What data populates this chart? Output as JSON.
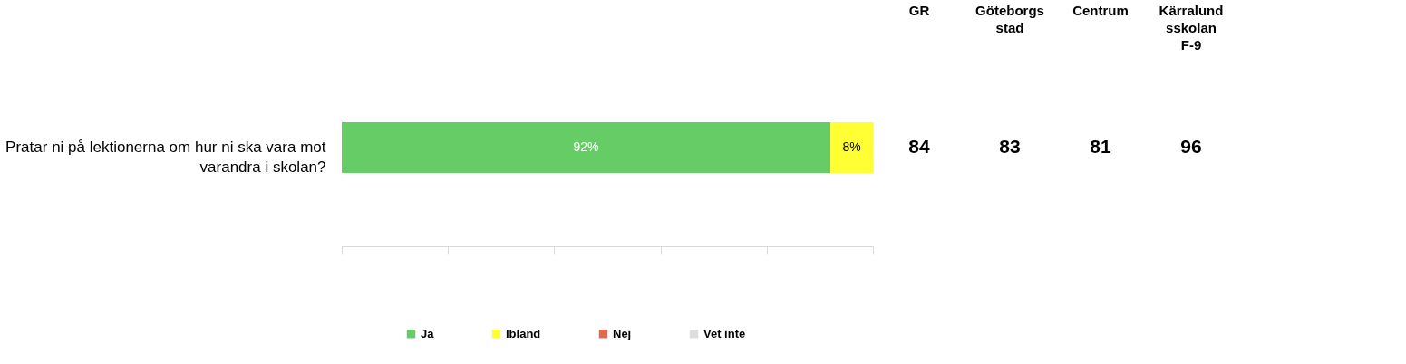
{
  "chart_data": [
    {
      "type": "bar",
      "orientation": "horizontal",
      "stacked": true,
      "categories": [
        "Pratar ni på lektionerna om hur ni ska vara mot varandra i skolan?"
      ],
      "series": [
        {
          "name": "Ja",
          "color": "#66cc66",
          "values": [
            92
          ],
          "value_labels": [
            "92%"
          ]
        },
        {
          "name": "Ibland",
          "color": "#ffff33",
          "values": [
            8
          ],
          "value_labels": [
            "8%"
          ]
        },
        {
          "name": "Nej",
          "color": "#e06a50",
          "values": [
            0
          ],
          "value_labels": [
            null
          ]
        },
        {
          "name": "Vet inte",
          "color": "#dddddd",
          "values": [
            0
          ],
          "value_labels": [
            null
          ]
        }
      ],
      "xlim": [
        0,
        100
      ],
      "grid": false,
      "legend": "bottom"
    },
    {
      "type": "other",
      "categories": [
        "GR",
        "Göteborgs stad",
        "Centrum",
        "Kärralundsskolan F-9"
      ],
      "values": [
        84,
        83,
        81,
        96
      ],
      "data_labels": true
    }
  ]
}
